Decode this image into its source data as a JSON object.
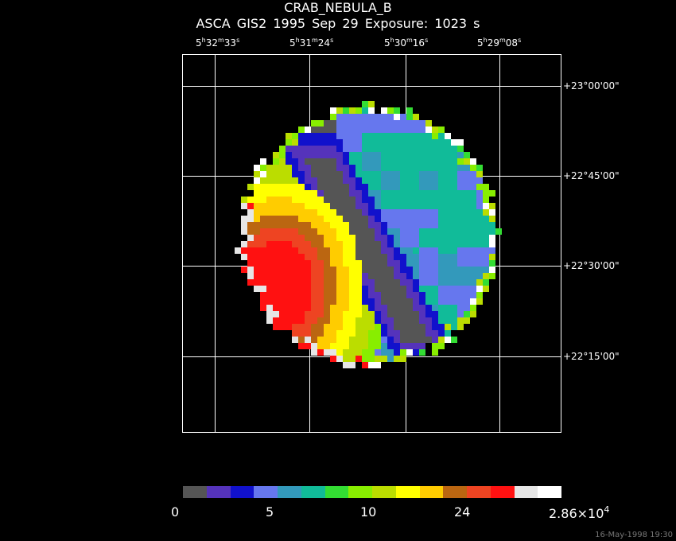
{
  "title": "CRAB_NEBULA_B",
  "subtitle": "ASCA GIS2   1995 Sep 29   Exposure:  1023 s",
  "ra_ticks": [
    {
      "h": "5",
      "m": "32",
      "s": "33"
    },
    {
      "h": "5",
      "m": "31",
      "s": "24"
    },
    {
      "h": "5",
      "m": "30",
      "s": "16"
    },
    {
      "h": "5",
      "m": "29",
      "s": "08"
    }
  ],
  "dec_ticks": [
    "+23°00'00\"",
    "+22°45'00\"",
    "+22°30'00\"",
    "+22°15'00\""
  ],
  "colorbar": {
    "colors": [
      "#555555",
      "#5533bb",
      "#1111cc",
      "#6677ee",
      "#3399bb",
      "#11bb99",
      "#33dd33",
      "#88ee00",
      "#bbdd00",
      "#ffff00",
      "#ffcc00",
      "#bb6611",
      "#ee4422",
      "#ff1111",
      "#e6e6e6",
      "#ffffff"
    ],
    "labels": [
      {
        "text": "0"
      },
      {
        "text": "5"
      },
      {
        "text": "10"
      },
      {
        "text": "24"
      },
      {
        "text": "2.86×10",
        "exp": "4"
      }
    ]
  },
  "timestamp": "16-May-1998 19:30"
}
